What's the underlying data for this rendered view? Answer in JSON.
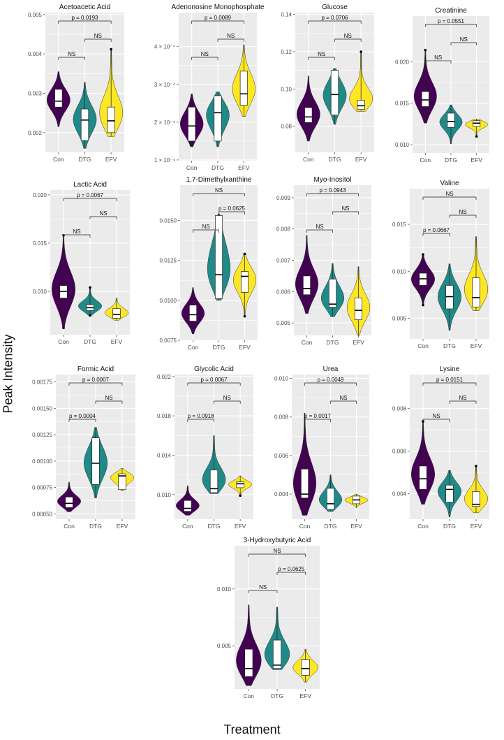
{
  "figure": {
    "ylabel": "Peak Intensity",
    "xlabel": "Treatment",
    "groups": [
      "Con",
      "DTG",
      "EFV"
    ],
    "colors": {
      "Con": "#440154",
      "DTG": "#1f8a87",
      "EFV": "#fde725"
    },
    "panel_bg": "#ebebeb",
    "grid_color": "#ffffff"
  },
  "chart_data": [
    {
      "type": "violin",
      "title": "Acetoacetic Acid",
      "ylim": [
        0.0015,
        0.00505
      ],
      "yticks": [
        0.002,
        0.003,
        0.004,
        0.005
      ],
      "ytick_labels": [
        "0.002",
        "0.003",
        "0.004",
        "0.005"
      ],
      "series": [
        {
          "group": "Con",
          "min": 0.00215,
          "q1": 0.00265,
          "median": 0.0028,
          "q3": 0.0031,
          "max": 0.00355,
          "outliers": []
        },
        {
          "group": "DTG",
          "min": 0.0016,
          "q1": 0.0018,
          "median": 0.00232,
          "q3": 0.0026,
          "max": 0.00328,
          "outliers": []
        },
        {
          "group": "EFV",
          "min": 0.0019,
          "q1": 0.002,
          "median": 0.0023,
          "q3": 0.00265,
          "max": 0.00412,
          "outliers": [
            0.00412
          ]
        }
      ],
      "comparisons": [
        {
          "from": "Con",
          "to": "DTG",
          "label": "NS"
        },
        {
          "from": "DTG",
          "to": "EFV",
          "label": "NS"
        },
        {
          "from": "Con",
          "to": "EFV",
          "label": "p = 0.0193"
        }
      ]
    },
    {
      "type": "violin",
      "title": "Adenonosine Monophosphate",
      "ylim": [
        9.8e-05,
        0.00049
      ],
      "yticks": [
        0.0001,
        0.0002,
        0.0003,
        0.0004
      ],
      "ytick_labels": [
        "1 × 10⁻⁴",
        "2 × 10⁻⁴",
        "3 × 10⁻⁴",
        "4 × 10⁻⁴"
      ],
      "series": [
        {
          "group": "Con",
          "min": 0.000135,
          "q1": 0.00015,
          "median": 0.00019,
          "q3": 0.00024,
          "max": 0.000275,
          "outliers": []
        },
        {
          "group": "DTG",
          "min": 0.000135,
          "q1": 0.00015,
          "median": 0.000225,
          "q3": 0.00027,
          "max": 0.00028,
          "outliers": []
        },
        {
          "group": "EFV",
          "min": 0.000215,
          "q1": 0.000245,
          "median": 0.000275,
          "q3": 0.000335,
          "max": 0.000405,
          "outliers": []
        }
      ],
      "comparisons": [
        {
          "from": "Con",
          "to": "DTG",
          "label": "NS"
        },
        {
          "from": "DTG",
          "to": "EFV",
          "label": "NS"
        },
        {
          "from": "Con",
          "to": "EFV",
          "label": "p = 0.0089"
        }
      ]
    },
    {
      "type": "violin",
      "title": "Glucose",
      "ylim": [
        0.066,
        0.141
      ],
      "yticks": [
        0.08,
        0.1,
        0.12,
        0.14
      ],
      "ytick_labels": [
        "0.08",
        "0.10",
        "0.12",
        "0.14"
      ],
      "series": [
        {
          "group": "Con",
          "min": 0.072,
          "q1": 0.082,
          "median": 0.085,
          "q3": 0.09,
          "max": 0.107,
          "outliers": []
        },
        {
          "group": "DTG",
          "min": 0.081,
          "q1": 0.086,
          "median": 0.097,
          "q3": 0.11,
          "max": 0.111,
          "outliers": []
        },
        {
          "group": "EFV",
          "min": 0.088,
          "q1": 0.089,
          "median": 0.091,
          "q3": 0.094,
          "max": 0.12,
          "outliers": [
            0.12
          ]
        }
      ],
      "comparisons": [
        {
          "from": "Con",
          "to": "DTG",
          "label": "NS"
        },
        {
          "from": "DTG",
          "to": "EFV",
          "label": "NS"
        },
        {
          "from": "Con",
          "to": "EFV",
          "label": "p = 0.0706"
        }
      ]
    },
    {
      "type": "violin",
      "title": "Creatinine",
      "ylim": [
        0.009,
        0.0255
      ],
      "yticks": [
        0.01,
        0.015,
        0.02
      ],
      "ytick_labels": [
        "0.010",
        "0.015",
        "0.020"
      ],
      "series": [
        {
          "group": "Con",
          "min": 0.0126,
          "q1": 0.0146,
          "median": 0.0154,
          "q3": 0.0164,
          "max": 0.0214,
          "outliers": [
            0.0214
          ]
        },
        {
          "group": "DTG",
          "min": 0.0101,
          "q1": 0.0121,
          "median": 0.0128,
          "q3": 0.0138,
          "max": 0.0148,
          "outliers": []
        },
        {
          "group": "EFV",
          "min": 0.011,
          "q1": 0.0122,
          "median": 0.0126,
          "q3": 0.0129,
          "max": 0.0131,
          "outliers": [
            0.011
          ]
        }
      ],
      "comparisons": [
        {
          "from": "Con",
          "to": "DTG",
          "label": "NS"
        },
        {
          "from": "DTG",
          "to": "EFV",
          "label": "NS"
        },
        {
          "from": "Con",
          "to": "EFV",
          "label": "p = 0.0551"
        }
      ]
    },
    {
      "type": "violin",
      "title": "Lactic Acid",
      "ylim": [
        0.0055,
        0.0205
      ],
      "yticks": [
        0.01,
        0.015,
        0.02
      ],
      "ytick_labels": [
        "0.010",
        "0.015",
        "0.020"
      ],
      "series": [
        {
          "group": "Con",
          "min": 0.0062,
          "q1": 0.0093,
          "median": 0.01,
          "q3": 0.0106,
          "max": 0.0158,
          "outliers": [
            0.0158,
            0.0062
          ]
        },
        {
          "group": "DTG",
          "min": 0.0075,
          "q1": 0.008,
          "median": 0.0083,
          "q3": 0.0086,
          "max": 0.0104,
          "outliers": [
            0.0104,
            0.0075
          ]
        },
        {
          "group": "EFV",
          "min": 0.007,
          "q1": 0.0072,
          "median": 0.0076,
          "q3": 0.0082,
          "max": 0.0093,
          "outliers": []
        }
      ],
      "comparisons": [
        {
          "from": "Con",
          "to": "DTG",
          "label": "NS"
        },
        {
          "from": "DTG",
          "to": "EFV",
          "label": "NS"
        },
        {
          "from": "Con",
          "to": "EFV",
          "label": "p = 0.0067"
        }
      ]
    },
    {
      "type": "violin",
      "title": "1,7-Dimethylxanthine",
      "ylim": [
        0.0075,
        0.0172
      ],
      "yticks": [
        0.0075,
        0.01,
        0.0125,
        0.015
      ],
      "ytick_labels": [
        "0.0075",
        "0.0100",
        "0.0125",
        "0.0150"
      ],
      "series": [
        {
          "group": "Con",
          "min": 0.0079,
          "q1": 0.0087,
          "median": 0.0091,
          "q3": 0.0097,
          "max": 0.0108,
          "outliers": []
        },
        {
          "group": "DTG",
          "min": 0.01,
          "q1": 0.0101,
          "median": 0.0116,
          "q3": 0.0153,
          "max": 0.0154,
          "outliers": []
        },
        {
          "group": "EFV",
          "min": 0.009,
          "q1": 0.0105,
          "median": 0.0115,
          "q3": 0.0118,
          "max": 0.0129,
          "outliers": [
            0.0129,
            0.009
          ]
        }
      ],
      "comparisons": [
        {
          "from": "Con",
          "to": "DTG",
          "label": "NS"
        },
        {
          "from": "DTG",
          "to": "EFV",
          "label": "p = 0.0625"
        },
        {
          "from": "Con",
          "to": "EFV",
          "label": "NS"
        }
      ]
    },
    {
      "type": "violin",
      "title": "Myo-Inositol",
      "ylim": [
        0.0046,
        0.0094
      ],
      "yticks": [
        0.005,
        0.006,
        0.007,
        0.008,
        0.009
      ],
      "ytick_labels": [
        "0.005",
        "0.006",
        "0.007",
        "0.008",
        "0.009"
      ],
      "series": [
        {
          "group": "Con",
          "min": 0.0053,
          "q1": 0.0059,
          "median": 0.0061,
          "q3": 0.0065,
          "max": 0.0078,
          "outliers": []
        },
        {
          "group": "DTG",
          "min": 0.0052,
          "q1": 0.0055,
          "median": 0.0056,
          "q3": 0.0064,
          "max": 0.0069,
          "outliers": []
        },
        {
          "group": "EFV",
          "min": 0.0046,
          "q1": 0.0051,
          "median": 0.0054,
          "q3": 0.0058,
          "max": 0.0068,
          "outliers": []
        }
      ],
      "comparisons": [
        {
          "from": "Con",
          "to": "DTG",
          "label": "NS"
        },
        {
          "from": "DTG",
          "to": "EFV",
          "label": "NS"
        },
        {
          "from": "Con",
          "to": "EFV",
          "label": "p = 0.0943"
        }
      ]
    },
    {
      "type": "violin",
      "title": "Valine",
      "ylim": [
        0.0028,
        0.0188
      ],
      "yticks": [
        0.005,
        0.01,
        0.015
      ],
      "ytick_labels": [
        "0.005",
        "0.010",
        "0.015"
      ],
      "series": [
        {
          "group": "Con",
          "min": 0.0064,
          "q1": 0.0085,
          "median": 0.0092,
          "q3": 0.0098,
          "max": 0.0118,
          "outliers": [
            0.0118,
            0.0064
          ]
        },
        {
          "group": "DTG",
          "min": 0.0037,
          "q1": 0.006,
          "median": 0.0073,
          "q3": 0.0085,
          "max": 0.0108,
          "outliers": []
        },
        {
          "group": "EFV",
          "min": 0.0058,
          "q1": 0.0062,
          "median": 0.0072,
          "q3": 0.0093,
          "max": 0.0137,
          "outliers": []
        }
      ],
      "comparisons": [
        {
          "from": "Con",
          "to": "DTG",
          "label": "p = 0.0667"
        },
        {
          "from": "DTG",
          "to": "EFV",
          "label": "NS"
        },
        {
          "from": "Con",
          "to": "EFV",
          "label": "NS"
        }
      ]
    },
    {
      "type": "violin",
      "title": "Formic Acid",
      "ylim": [
        0.00045,
        0.00182
      ],
      "yticks": [
        0.0005,
        0.00075,
        0.001,
        0.00125,
        0.0015,
        0.00175
      ],
      "ytick_labels": [
        "0.00050",
        "0.00075",
        "0.00100",
        "0.00125",
        "0.00150",
        "0.00175"
      ],
      "series": [
        {
          "group": "Con",
          "min": 0.00052,
          "q1": 0.00056,
          "median": 0.0006,
          "q3": 0.00066,
          "max": 0.0008,
          "outliers": []
        },
        {
          "group": "DTG",
          "min": 0.00065,
          "q1": 0.00078,
          "median": 0.00098,
          "q3": 0.00122,
          "max": 0.00132,
          "outliers": []
        },
        {
          "group": "EFV",
          "min": 0.00072,
          "q1": 0.00073,
          "median": 0.00086,
          "q3": 0.00088,
          "max": 0.00093,
          "outliers": []
        }
      ],
      "comparisons": [
        {
          "from": "Con",
          "to": "DTG",
          "label": "p = 0.0004"
        },
        {
          "from": "DTG",
          "to": "EFV",
          "label": "NS"
        },
        {
          "from": "Con",
          "to": "EFV",
          "label": "p = 0.0007"
        }
      ]
    },
    {
      "type": "violin",
      "title": "Glycolic Acid",
      "ylim": [
        0.0075,
        0.0222
      ],
      "yticks": [
        0.01,
        0.014,
        0.018,
        0.022
      ],
      "ytick_labels": [
        "0.010",
        "0.014",
        "0.018",
        "0.022"
      ],
      "series": [
        {
          "group": "Con",
          "min": 0.0079,
          "q1": 0.0083,
          "median": 0.0086,
          "q3": 0.0094,
          "max": 0.0109,
          "outliers": []
        },
        {
          "group": "DTG",
          "min": 0.0101,
          "q1": 0.0102,
          "median": 0.0106,
          "q3": 0.0125,
          "max": 0.016,
          "outliers": []
        },
        {
          "group": "EFV",
          "min": 0.0099,
          "q1": 0.0107,
          "median": 0.0111,
          "q3": 0.0113,
          "max": 0.0119,
          "outliers": [
            0.0099
          ]
        }
      ],
      "comparisons": [
        {
          "from": "Con",
          "to": "DTG",
          "label": "p = 0.0918"
        },
        {
          "from": "DTG",
          "to": "EFV",
          "label": "NS"
        },
        {
          "from": "Con",
          "to": "EFV",
          "label": "p = 0.0067"
        }
      ]
    },
    {
      "type": "violin",
      "title": "Urea",
      "ylim": [
        0.0027,
        0.0102
      ],
      "yticks": [
        0.004,
        0.006,
        0.008,
        0.01
      ],
      "ytick_labels": [
        "0.004",
        "0.006",
        "0.008",
        "0.010"
      ],
      "series": [
        {
          "group": "Con",
          "min": 0.0029,
          "q1": 0.0038,
          "median": 0.004,
          "q3": 0.0053,
          "max": 0.0082,
          "outliers": []
        },
        {
          "group": "DTG",
          "min": 0.0031,
          "q1": 0.0032,
          "median": 0.0035,
          "q3": 0.0043,
          "max": 0.005,
          "outliers": []
        },
        {
          "group": "EFV",
          "min": 0.0033,
          "q1": 0.0035,
          "median": 0.0037,
          "q3": 0.0039,
          "max": 0.004,
          "outliers": []
        }
      ],
      "comparisons": [
        {
          "from": "Con",
          "to": "DTG",
          "label": "p = 0.0017"
        },
        {
          "from": "DTG",
          "to": "EFV",
          "label": "NS"
        },
        {
          "from": "Con",
          "to": "EFV",
          "label": "p = 0.0049"
        }
      ]
    },
    {
      "type": "violin",
      "title": "Lysine",
      "ylim": [
        0.0028,
        0.0096
      ],
      "yticks": [
        0.004,
        0.006,
        0.008
      ],
      "ytick_labels": [
        "0.004",
        "0.006",
        "0.008"
      ],
      "series": [
        {
          "group": "Con",
          "min": 0.0035,
          "q1": 0.0042,
          "median": 0.0047,
          "q3": 0.0053,
          "max": 0.0074,
          "outliers": [
            0.0074
          ]
        },
        {
          "group": "DTG",
          "min": 0.0029,
          "q1": 0.0036,
          "median": 0.0042,
          "q3": 0.0044,
          "max": 0.0051,
          "outliers": []
        },
        {
          "group": "EFV",
          "min": 0.0031,
          "q1": 0.0034,
          "median": 0.0035,
          "q3": 0.0041,
          "max": 0.0053,
          "outliers": [
            0.0053
          ]
        }
      ],
      "comparisons": [
        {
          "from": "Con",
          "to": "DTG",
          "label": "NS"
        },
        {
          "from": "DTG",
          "to": "EFV",
          "label": "NS"
        },
        {
          "from": "Con",
          "to": "EFV",
          "label": "p = 0.0151"
        }
      ]
    },
    {
      "type": "violin",
      "title": "3-Hydroxybutyric Acid",
      "ylim": [
        0.0012,
        0.0138
      ],
      "yticks": [
        0.005,
        0.01
      ],
      "ytick_labels": [
        "0.005",
        "0.010"
      ],
      "series": [
        {
          "group": "Con",
          "min": 0.0015,
          "q1": 0.0023,
          "median": 0.003,
          "q3": 0.0047,
          "max": 0.0086,
          "outliers": []
        },
        {
          "group": "DTG",
          "min": 0.0029,
          "q1": 0.003,
          "median": 0.0033,
          "q3": 0.0055,
          "max": 0.0084,
          "outliers": []
        },
        {
          "group": "EFV",
          "min": 0.0018,
          "q1": 0.0024,
          "median": 0.003,
          "q3": 0.0038,
          "max": 0.0047,
          "outliers": []
        }
      ],
      "comparisons": [
        {
          "from": "Con",
          "to": "DTG",
          "label": "NS"
        },
        {
          "from": "DTG",
          "to": "EFV",
          "label": "p = 0.0625"
        },
        {
          "from": "Con",
          "to": "EFV",
          "label": "NS"
        }
      ]
    }
  ]
}
